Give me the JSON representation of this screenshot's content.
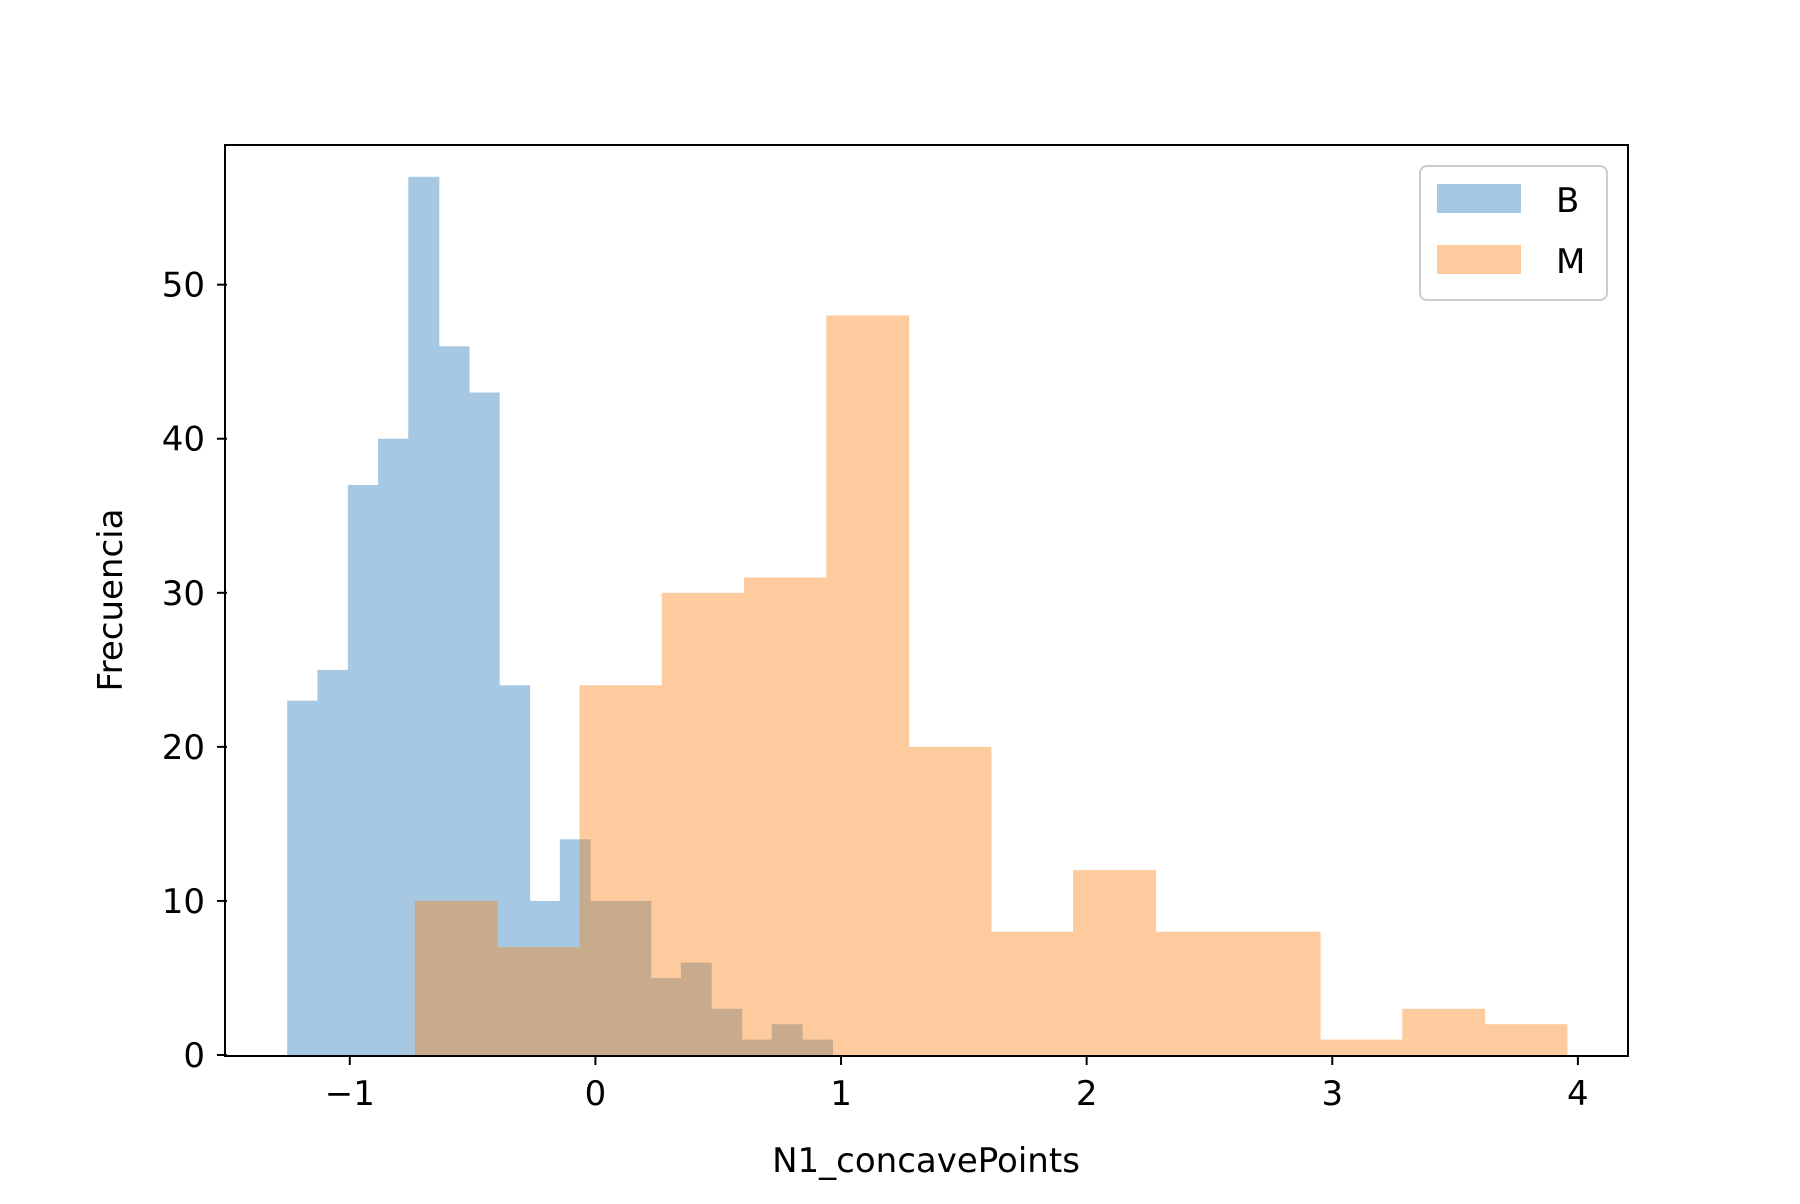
{
  "chart_data": {
    "type": "bar",
    "subtype": "overlaid-histogram",
    "xlabel": "N1_concavePoints",
    "ylabel": "Frecuencia",
    "xlim": [
      -1.5,
      4.2
    ],
    "ylim": [
      0,
      59
    ],
    "xticks": [
      -1,
      0,
      1,
      2,
      3,
      4
    ],
    "xtick_labels": [
      "−1",
      "0",
      "1",
      "2",
      "3",
      "4"
    ],
    "yticks": [
      0,
      10,
      20,
      30,
      40,
      50
    ],
    "ytick_labels": [
      "0",
      "10",
      "20",
      "30",
      "40",
      "50"
    ],
    "grid": false,
    "legend_position": "top-right",
    "series": [
      {
        "name": "B",
        "color": "#a7c8e2",
        "bin_edges": [
          -1.255,
          -1.132,
          -1.008,
          -0.885,
          -0.762,
          -0.638,
          -0.515,
          -0.392,
          -0.268,
          -0.145,
          -0.022,
          0.102,
          0.225,
          0.348,
          0.471,
          0.595,
          0.718,
          0.841,
          0.965
        ],
        "counts": [
          23,
          25,
          37,
          40,
          57,
          46,
          43,
          24,
          10,
          14,
          10,
          10,
          5,
          6,
          3,
          1,
          2,
          1
        ]
      },
      {
        "name": "M",
        "color": "#fecb9f",
        "bin_edges": [
          -0.735,
          -0.4,
          -0.065,
          0.27,
          0.605,
          0.94,
          1.275,
          1.61,
          1.945,
          2.28,
          2.615,
          2.95,
          3.285,
          3.62,
          3.955
        ],
        "counts": [
          10,
          7,
          24,
          30,
          31,
          48,
          20,
          8,
          12,
          8,
          8,
          1,
          3,
          2
        ]
      }
    ],
    "overlap_color": "#c8ab8d"
  }
}
